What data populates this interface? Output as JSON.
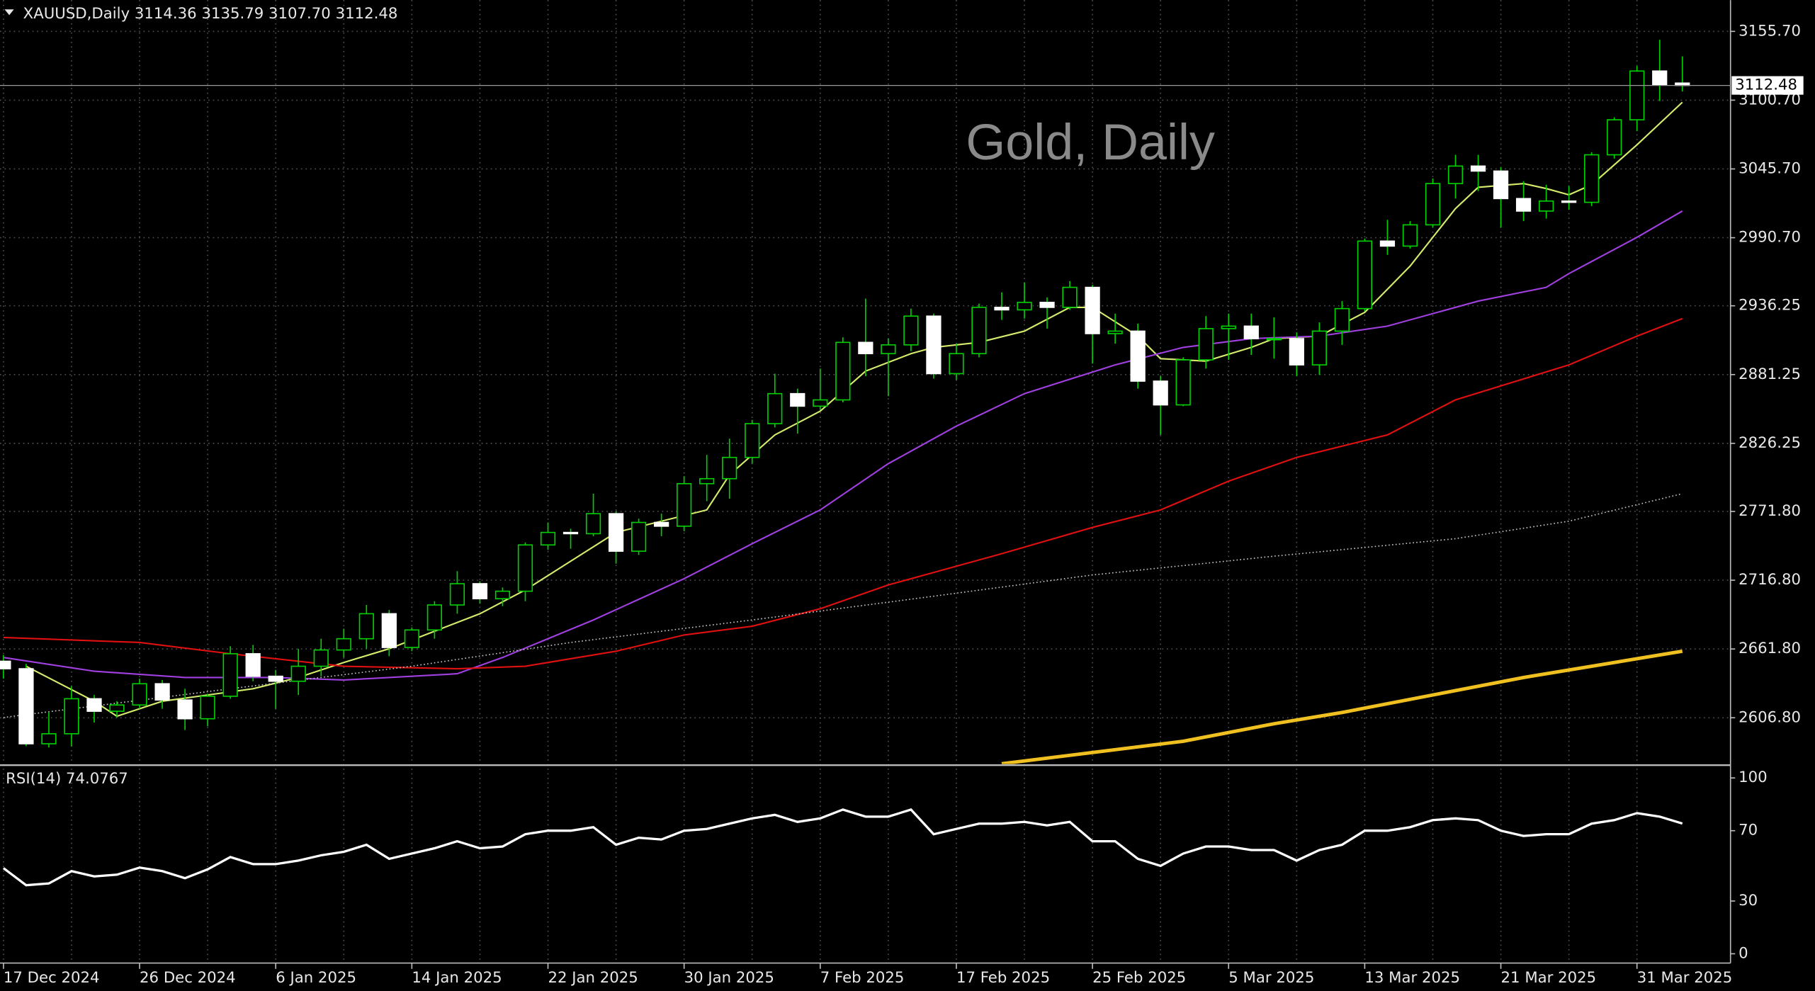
{
  "chart_data": {
    "type": "candlestick",
    "header": "XAUUSD,Daily  3114.36 3135.79 3107.70 3112.48",
    "watermark": "Gold, Daily",
    "categories": [
      "17 Dec 2024",
      null,
      null,
      null,
      null,
      null,
      "26 Dec 2024",
      null,
      null,
      null,
      null,
      null,
      "6 Jan 2025",
      null,
      null,
      null,
      null,
      null,
      "14 Jan 2025",
      null,
      null,
      null,
      null,
      null,
      "22 Jan 2025",
      null,
      null,
      null,
      null,
      null,
      "30 Jan 2025",
      null,
      null,
      null,
      null,
      null,
      "7 Feb 2025",
      null,
      null,
      null,
      null,
      null,
      "17 Feb 2025",
      null,
      null,
      null,
      null,
      null,
      "25 Feb 2025",
      null,
      null,
      null,
      null,
      null,
      "5 Mar 2025",
      null,
      null,
      null,
      null,
      null,
      "13 Mar 2025",
      null,
      null,
      null,
      null,
      null,
      "21 Mar 2025",
      null,
      null,
      null,
      null,
      null,
      "31 Mar 2025",
      null,
      null
    ],
    "open": [
      2652,
      2646,
      2586,
      2594,
      2622,
      2612,
      2617,
      2634,
      2621,
      2606,
      2624,
      2658,
      2640,
      2636,
      2648,
      2661,
      2670,
      2690,
      2663,
      2677,
      2697,
      2714,
      2702,
      2708,
      2745,
      2755,
      2754,
      2770,
      2740,
      2763,
      2760,
      2794,
      2798,
      2815,
      2842,
      2866,
      2856,
      2861,
      2907,
      2898,
      2905,
      2928,
      2882,
      2898,
      2935,
      2933,
      2939,
      2935,
      2951,
      2914,
      2916,
      2876,
      2857,
      2893,
      2918,
      2920,
      2910,
      2910,
      2889,
      2916,
      2934,
      2988,
      2984,
      3001,
      3034,
      3048,
      3044,
      3022,
      3012,
      3020,
      3019,
      3057,
      3085,
      3124,
      3114.36
    ],
    "high": [
      2657,
      2650,
      2611,
      2632,
      2625,
      2620,
      2638,
      2637,
      2630,
      2626,
      2664,
      2665,
      2645,
      2662,
      2670,
      2678,
      2697,
      2693,
      2679,
      2700,
      2724,
      2716,
      2711,
      2747,
      2763,
      2758,
      2786,
      2772,
      2766,
      2770,
      2800,
      2817,
      2830,
      2845,
      2882,
      2870,
      2886,
      2911,
      2942,
      2910,
      2934,
      2930,
      2906,
      2938,
      2947,
      2955,
      2943,
      2956,
      2953,
      2930,
      2922,
      2880,
      2895,
      2928,
      2930,
      2930,
      2927,
      2915,
      2923,
      2940,
      2990,
      3005,
      3004,
      3038,
      3057,
      3057,
      3047,
      3036,
      3033,
      3032,
      3059,
      3087,
      3128,
      3149,
      3135.79
    ],
    "low": [
      2638,
      2584,
      2583,
      2584,
      2603,
      2607,
      2614,
      2614,
      2597,
      2600,
      2622,
      2636,
      2614,
      2625,
      2640,
      2655,
      2662,
      2656,
      2660,
      2670,
      2690,
      2698,
      2696,
      2700,
      2741,
      2742,
      2752,
      2730,
      2737,
      2752,
      2756,
      2780,
      2782,
      2810,
      2839,
      2834,
      2853,
      2859,
      2880,
      2864,
      2900,
      2878,
      2877,
      2895,
      2925,
      2926,
      2918,
      2933,
      2890,
      2906,
      2870,
      2833,
      2856,
      2886,
      2893,
      2897,
      2894,
      2880,
      2881,
      2905,
      2932,
      2977,
      2982,
      2999,
      3022,
      3028,
      2999,
      3004,
      3006,
      3013,
      3016,
      3054,
      3076,
      3100,
      3107.7
    ],
    "close": [
      2646,
      2586,
      2594,
      2622,
      2612,
      2617,
      2634,
      2621,
      2606,
      2624,
      2658,
      2640,
      2636,
      2648,
      2661,
      2670,
      2690,
      2663,
      2677,
      2697,
      2714,
      2702,
      2708,
      2745,
      2755,
      2754,
      2770,
      2740,
      2763,
      2760,
      2794,
      2798,
      2815,
      2842,
      2866,
      2856,
      2861,
      2907,
      2898,
      2905,
      2928,
      2882,
      2898,
      2935,
      2933,
      2939,
      2935,
      2951,
      2914,
      2916,
      2876,
      2857,
      2893,
      2918,
      2920,
      2910,
      2910,
      2889,
      2916,
      2934,
      2988,
      2984,
      3001,
      3034,
      3048,
      3044,
      3022,
      3012,
      3020,
      3019,
      3057,
      3085,
      3124,
      3113,
      3112.48
    ],
    "bull_color": "#000000",
    "bear_color": "#ffffff",
    "wick_color": "#00d000",
    "ylim": [
      2569.8,
      3180.7
    ],
    "yticks": [
      {
        "value": 2606.8,
        "label": "2606.80"
      },
      {
        "value": 2661.8,
        "label": "2661.80"
      },
      {
        "value": 2716.8,
        "label": "2716.80"
      },
      {
        "value": 2771.8,
        "label": "2771.80"
      },
      {
        "value": 2826.25,
        "label": "2826.25"
      },
      {
        "value": 2881.25,
        "label": "2881.25"
      },
      {
        "value": 2936.25,
        "label": "2936.25"
      },
      {
        "value": 2990.7,
        "label": "2990.70"
      },
      {
        "value": 3045.7,
        "label": "3045.70"
      },
      {
        "value": 3100.7,
        "label": "3100.70"
      },
      {
        "value": 3155.7,
        "label": "3155.70"
      }
    ],
    "grid": true,
    "current_price": {
      "value": 3112.48,
      "label": "3112.48"
    },
    "overlays": [
      {
        "color": "#d4ec6c",
        "style": "solid",
        "x": [
          1,
          4,
          5,
          7,
          9,
          11,
          13,
          15,
          17,
          19,
          21,
          23,
          25,
          27,
          29,
          31,
          32,
          34,
          36,
          38,
          40,
          41,
          43,
          45,
          47,
          48,
          50,
          51,
          53,
          55,
          56,
          58,
          60,
          62,
          64,
          65,
          67,
          68,
          69,
          70,
          72,
          74
        ],
        "values": [
          2648,
          2620,
          2608,
          2620,
          2625,
          2630,
          2639,
          2651,
          2662,
          2676,
          2690,
          2709,
          2732,
          2755,
          2764,
          2773,
          2801,
          2833,
          2852,
          2884,
          2898,
          2903,
          2907,
          2916,
          2935,
          2935,
          2912,
          2894,
          2892,
          2903,
          2910,
          2912,
          2931,
          2968,
          3014,
          3031,
          3034,
          3030,
          3025,
          3033,
          3065,
          3099
        ]
      },
      {
        "color": "#a040e0",
        "style": "solid",
        "x": [
          0,
          4,
          8,
          12,
          15,
          20,
          22,
          26,
          30,
          33,
          36,
          39,
          42,
          45,
          49,
          52,
          55,
          58,
          61,
          65,
          68,
          69,
          72,
          74
        ],
        "values": [
          2655,
          2644,
          2639,
          2639,
          2637,
          2642,
          2655,
          2685,
          2718,
          2746,
          2773,
          2810,
          2840,
          2866,
          2889,
          2903,
          2910,
          2912,
          2920,
          2940,
          2951,
          2962,
          2991,
          3012
        ]
      },
      {
        "color": "#e01010",
        "style": "solid",
        "x": [
          0,
          6,
          10,
          15,
          20,
          23,
          27,
          30,
          33,
          36,
          39,
          44,
          48,
          51,
          54,
          57,
          61,
          64,
          69,
          72,
          74
        ],
        "values": [
          2671,
          2667,
          2658,
          2648,
          2646,
          2648,
          2660,
          2673,
          2680,
          2694,
          2713,
          2738,
          2759,
          2773,
          2796,
          2815,
          2833,
          2861,
          2889,
          2912,
          2926
        ]
      },
      {
        "color": "#c8c8c8",
        "style": "dotted",
        "x": [
          0,
          10,
          18,
          25,
          33,
          41,
          48,
          56,
          64,
          69,
          74
        ],
        "values": [
          2607,
          2630,
          2648,
          2667,
          2685,
          2704,
          2721,
          2736,
          2750,
          2764,
          2786
        ]
      },
      {
        "color": "#f0c020",
        "style": "thick",
        "x": [
          44,
          48,
          52,
          56,
          59,
          63,
          67,
          70,
          74
        ],
        "values": [
          2570,
          2579,
          2588,
          2602,
          2611,
          2625,
          2639,
          2648,
          2660
        ]
      }
    ],
    "indicator": {
      "type": "line",
      "title": "RSI(14) 74.0767",
      "color": "#ffffff",
      "values": [
        48.7,
        39,
        40,
        47,
        44,
        45,
        49,
        47,
        43,
        48,
        55,
        51,
        51,
        53,
        56,
        58,
        62,
        54,
        57,
        60,
        64,
        60,
        61,
        68,
        70,
        70,
        72,
        62,
        66,
        65,
        70,
        71,
        74,
        77,
        79,
        75,
        77,
        82,
        78,
        78,
        82,
        68,
        71,
        74,
        74,
        75,
        73,
        75,
        64,
        64,
        54,
        50,
        57,
        61,
        61,
        59,
        59,
        53,
        59,
        62,
        70,
        70,
        72,
        76,
        77,
        76,
        70,
        67,
        68,
        68,
        74,
        76,
        80,
        78,
        74.0767
      ],
      "ylim": [
        -5.3,
        106.6
      ],
      "yticks": [
        0,
        30,
        70,
        100
      ]
    }
  }
}
